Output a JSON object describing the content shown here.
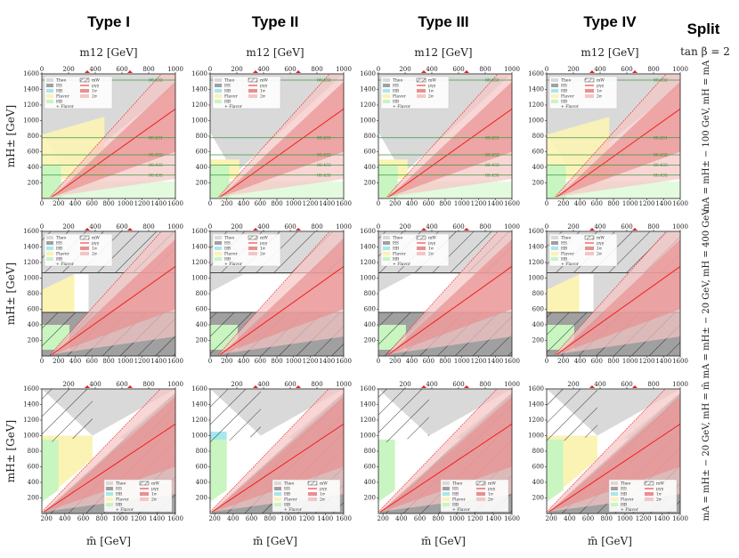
{
  "figure": {
    "corner_title": "Split",
    "corner_subtitle": "tan β = 2",
    "types": [
      "Type I",
      "Type II",
      "Type III",
      "Type IV"
    ],
    "top_axis_label": "m12 [GeV]",
    "bottom_axis_label": "m̄ [GeV]",
    "y_axis_label": "mH± [GeV]",
    "row_labels": [
      "mA = mH± − 100 GeV, mH = mA",
      "mA = mH± − 20 GeV, mH = 400 GeV",
      "mA = mH± − 20 GeV, mH = m̄"
    ],
    "legend": {
      "left": [
        "Theo",
        "HS",
        "HB",
        "Flavor",
        "HB",
        "+ Flavor"
      ],
      "right": [
        "mW",
        "μγγ",
        "1σ",
        "2σ"
      ]
    },
    "colors": {
      "theo": "#d9d9d9",
      "hs": "#a0a0a0",
      "hb": "#a6e8ec",
      "flavor": "#fbf3b4",
      "hb_flavor": "#c8f5c0",
      "band1": "#e89090",
      "band2": "#f6c4c4",
      "mu_line": "#ee2020",
      "tb_line": "#3a9a3a"
    }
  },
  "chart_data": [
    {
      "type": "region-map",
      "row": 1,
      "title": "Type I / Type II / Type III / Type IV",
      "xlabel": "m̄ [GeV]",
      "ylabel": "mH± [GeV]",
      "xlim": [
        0,
        1600
      ],
      "ylim": [
        0,
        1600
      ],
      "x_ticks": [
        "0",
        "200",
        "400",
        "600",
        "800",
        "1000",
        "1200",
        "1400",
        "1600"
      ],
      "y_ticks": [
        "200",
        "400",
        "600",
        "800",
        "1000",
        "1200",
        "1400",
        "1600"
      ],
      "top_axis": {
        "label": "m12 [GeV]",
        "range": [
          0,
          1000
        ],
        "ticks": [
          "0",
          "200",
          "400",
          "600",
          "800",
          "1000"
        ]
      },
      "tb_contours": [
        "80.432",
        "80.431",
        "80.432",
        "80.433",
        "80.435"
      ]
    },
    {
      "type": "region-map",
      "row": 2,
      "xlabel": "m̄ [GeV]",
      "ylabel": "mH± [GeV]",
      "xlim": [
        0,
        1600
      ],
      "ylim": [
        0,
        1600
      ],
      "x_ticks": [
        "0",
        "200",
        "400",
        "600",
        "800",
        "1000",
        "1200",
        "1400",
        "1600"
      ],
      "y_ticks": [
        "200",
        "400",
        "600",
        "800",
        "1000",
        "1200",
        "1400",
        "1600"
      ],
      "top_axis": {
        "label": "m12 [GeV]",
        "range": [
          0,
          1000
        ],
        "ticks": [
          "0",
          "200",
          "400",
          "600",
          "800",
          "1000"
        ]
      }
    },
    {
      "type": "region-map",
      "row": 3,
      "xlabel": "m̄ [GeV]",
      "ylabel": "mH± [GeV]",
      "xlim": [
        150,
        1600
      ],
      "ylim": [
        0,
        1600
      ],
      "x_ticks": [
        "200",
        "400",
        "600",
        "800",
        "1000",
        "1200",
        "1400",
        "1600"
      ],
      "y_ticks": [
        "200",
        "400",
        "600",
        "800",
        "1000",
        "1200",
        "1400",
        "1600"
      ],
      "top_axis": {
        "label": "m12 [GeV]",
        "range": [
          0,
          1000
        ],
        "ticks": [
          "200",
          "400",
          "600",
          "800",
          "1000"
        ]
      }
    }
  ]
}
